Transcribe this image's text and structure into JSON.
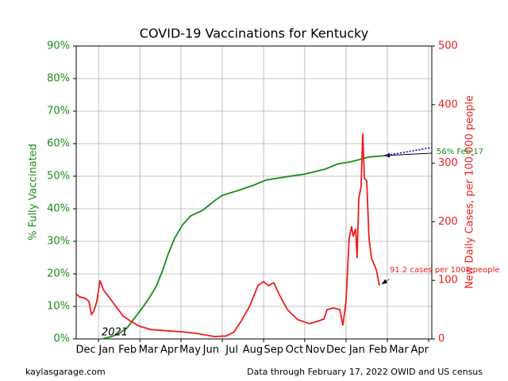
{
  "chart_data": {
    "type": "line",
    "title": "COVID-19 Vaccinations for Kentucky",
    "ylabel": "% Fully Vaccinated",
    "y2label": "New Daily Cases, per 100,000 people",
    "xlim": [
      -0.46,
      16.58
    ],
    "xticks": [
      {
        "value": 0,
        "label": "Dec"
      },
      {
        "value": 1,
        "label": "Jan"
      },
      {
        "value": 2,
        "label": "Feb"
      },
      {
        "value": 3,
        "label": "Mar"
      },
      {
        "value": 4,
        "label": "Apr"
      },
      {
        "value": 5,
        "label": "May"
      },
      {
        "value": 6,
        "label": "Jun"
      },
      {
        "value": 7,
        "label": "Jul"
      },
      {
        "value": 8,
        "label": "Aug"
      },
      {
        "value": 9,
        "label": "Sep"
      },
      {
        "value": 10,
        "label": "Oct"
      },
      {
        "value": 11,
        "label": "Nov"
      },
      {
        "value": 12,
        "label": "Dec"
      },
      {
        "value": 13,
        "label": "Jan"
      },
      {
        "value": 14,
        "label": "Feb"
      },
      {
        "value": 15,
        "label": "Mar"
      },
      {
        "value": 16,
        "label": "Apr"
      }
    ],
    "xgrid": [
      0.61,
      2.59,
      4.56,
      6.54,
      8.52,
      10.49,
      12.47,
      14.45,
      16.43
    ],
    "ylim": [
      0,
      90
    ],
    "yticks": [
      {
        "value": 0,
        "label": "0%"
      },
      {
        "value": 10,
        "label": "10%"
      },
      {
        "value": 20,
        "label": "20%"
      },
      {
        "value": 30,
        "label": "30%"
      },
      {
        "value": 40,
        "label": "40%"
      },
      {
        "value": 50,
        "label": "50%"
      },
      {
        "value": 60,
        "label": "60%"
      },
      {
        "value": 70,
        "label": "70%"
      },
      {
        "value": 80,
        "label": "80%"
      },
      {
        "value": 90,
        "label": "90%"
      }
    ],
    "y2lim": [
      0,
      500
    ],
    "y2ticks": [
      0,
      100,
      200,
      300,
      400,
      500
    ],
    "grid": true,
    "series": [
      {
        "name": "% Fully Vaccinated",
        "color": "#1a8c1a",
        "style": "solid",
        "x": [
          0.76,
          1.22,
          1.6,
          1.98,
          2.36,
          2.74,
          3.12,
          3.38,
          3.69,
          3.95,
          4.26,
          4.64,
          5.02,
          5.59,
          6.16,
          6.54,
          7.3,
          8.06,
          8.63,
          9.58,
          10.53,
          11.48,
          12.05,
          12.81,
          13.57,
          14.3
        ],
        "values": [
          0,
          0.7,
          1.7,
          3.4,
          6.6,
          9.8,
          13.4,
          16.3,
          21.2,
          26.1,
          31,
          35.1,
          37.8,
          39.5,
          42.4,
          44.1,
          45.6,
          47.3,
          48.8,
          49.8,
          50.7,
          52.2,
          53.7,
          54.6,
          55.9,
          56.3
        ]
      },
      {
        "name": "Projection",
        "color": "#0000cc",
        "style": "dotted",
        "x": [
          14.3,
          16.58
        ],
        "values": [
          56.3,
          58.8
        ]
      },
      {
        "name": "New Daily Cases",
        "color": "#ee1c1c",
        "style": "solid",
        "axis": "y2",
        "x": [
          -0.46,
          -0.3,
          0,
          0.15,
          0.27,
          0.38,
          0.53,
          0.68,
          0.84,
          1.03,
          1.41,
          1.79,
          2.17,
          2.55,
          3.12,
          3.88,
          4.64,
          5.4,
          6.16,
          6.73,
          7.11,
          7.49,
          7.87,
          8.25,
          8.52,
          8.75,
          9.01,
          9.28,
          9.66,
          10.15,
          10.72,
          11.1,
          11.41,
          11.56,
          11.86,
          12.17,
          12.32,
          12.47,
          12.62,
          12.74,
          12.81,
          12.93,
          13,
          13.08,
          13.19,
          13.27,
          13.35,
          13.46,
          13.57,
          13.69,
          13.84,
          13.92,
          14.07
        ],
        "values": [
          77,
          72,
          69,
          64,
          42,
          47,
          64,
          100,
          84,
          75,
          57,
          39,
          30,
          22,
          16,
          14,
          12,
          9,
          4,
          5,
          12,
          33,
          57,
          91,
          98,
          91,
          96,
          75,
          50,
          33,
          26,
          30,
          34,
          50,
          53,
          50,
          23,
          64,
          172,
          192,
          175,
          188,
          138,
          240,
          260,
          351,
          274,
          270,
          172,
          138,
          125,
          118,
          91.2
        ]
      }
    ],
    "annotations": [
      "2021",
      "56% Feb 17",
      "91.2 cases per 100k people"
    ],
    "footer_left": "kaylasgarage.com",
    "footer_right": "Data through February 17, 2022 OWID and US census"
  }
}
